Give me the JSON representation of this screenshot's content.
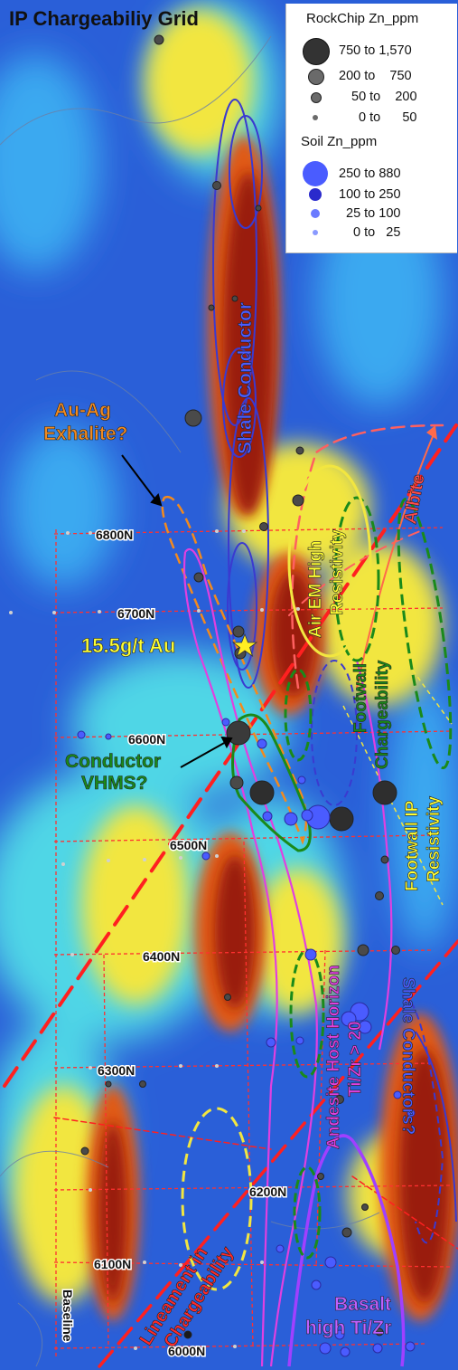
{
  "title": "IP Chargeabiliy Grid",
  "legend": {
    "rock_title": "RockChip Zn_ppm",
    "rock_rows": [
      "750 to 1,570",
      "200 to    750",
      "50 to    200",
      "0 to      50"
    ],
    "soil_title": "Soil Zn_ppm",
    "soil_rows": [
      "250 to 880",
      "100 to 250",
      "25 to 100",
      "0 to   25"
    ],
    "rock_color": "#4a4a4a",
    "soil_color": "#4a5cff"
  },
  "grid_lines": [
    "6800N",
    "6700N",
    "6600N",
    "6500N",
    "6400N",
    "6300N",
    "6200N",
    "6100N",
    "6000N"
  ],
  "baseline_label": "Baseline",
  "annotations": {
    "au_ag": [
      "Au-Ag",
      "Exhalite?"
    ],
    "conductor": [
      "Conductor",
      "VHMS?"
    ],
    "gold": "15.5g/t Au",
    "shale_conductor": "Shale Conductor",
    "albite": "Albite",
    "air_em": [
      "Air EM High",
      "Resistivity"
    ],
    "footwall_charge": [
      "Footwall",
      "Chargeability"
    ],
    "footwall_ip": [
      "Footwall IP",
      "Resistivity"
    ],
    "andesite": [
      "Andesite Host Horizon",
      "Ti/Zr > 20"
    ],
    "shale_conductors": "Shale Conductors?",
    "lineament": [
      "Lineament in",
      "Chargeability"
    ],
    "basalt": [
      "Basalt",
      "high Ti/Zr"
    ]
  },
  "colors": {
    "au_ag_text": "#f28a1e",
    "conductor_text": "#1a8a1a",
    "gold_text": "#ffff33",
    "shale_text": "#4a5cff",
    "albite_text": "#ff4b4b",
    "yellow_text": "#ffff33",
    "footwall_text": "#1a8a1a",
    "andesite_text": "#e040e0",
    "lineament_text": "#ff2a2a",
    "basalt_text": "#c060ff"
  }
}
